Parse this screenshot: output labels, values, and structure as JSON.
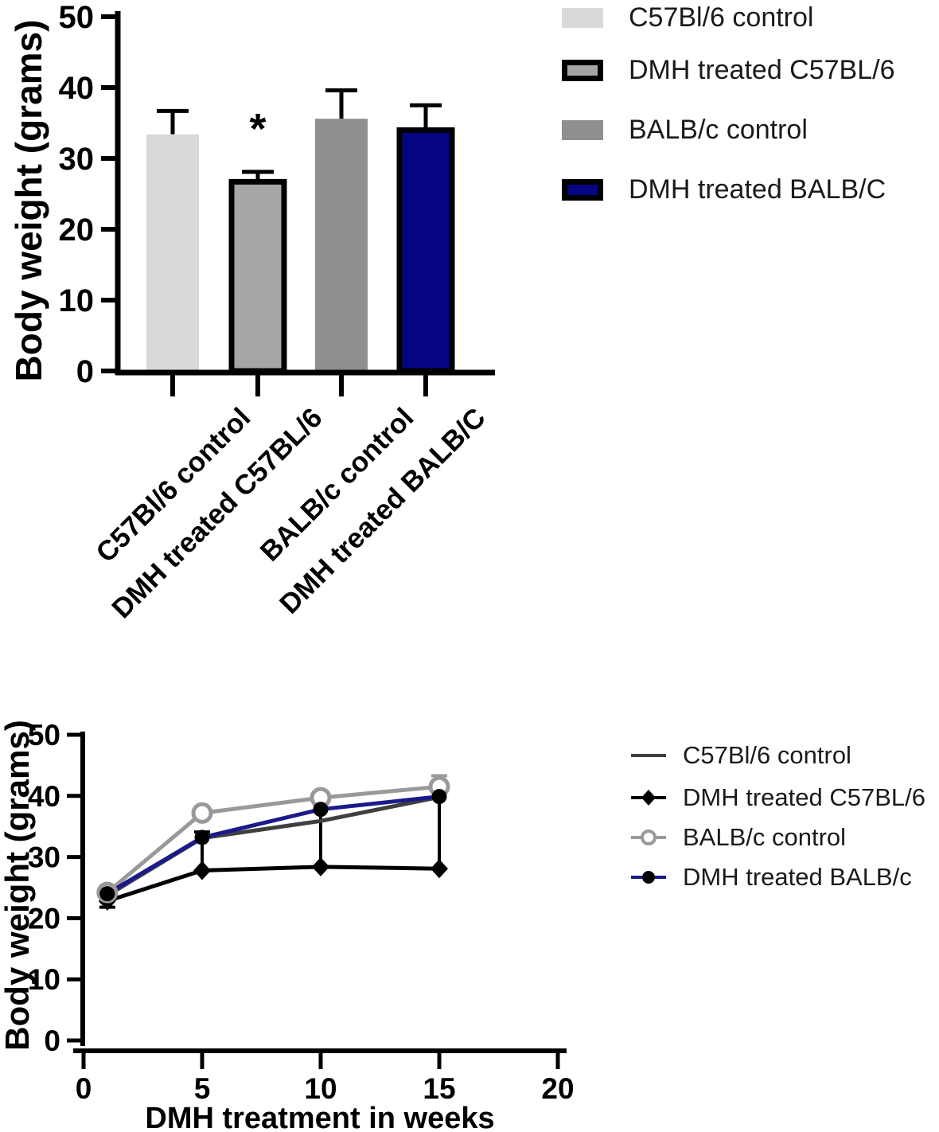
{
  "figure": {
    "description": "Two-panel GraphPad-style figure of mouse body weight",
    "significance_marker": "*"
  },
  "chart_data": [
    {
      "type": "bar",
      "title": "",
      "xlabel": "",
      "ylabel": "Body weight (grams)",
      "ylim": [
        0,
        50
      ],
      "yticks": [
        0,
        10,
        20,
        30,
        40,
        50
      ],
      "grid": false,
      "categories": [
        "C57Bl/6 control",
        "DMH treated C57BL/6",
        "BALB/c control",
        "DMH treated BALB/C"
      ],
      "values": [
        33.4,
        26.7,
        35.6,
        34.0
      ],
      "error_up": [
        3.3,
        1.4,
        4.0,
        3.5
      ],
      "bar_colors": [
        "#d9d9d9",
        "#a6a6a6",
        "#8f8f8f",
        "#050583"
      ],
      "bar_borders": [
        null,
        "#000000",
        null,
        "#000000"
      ],
      "significance": {
        "bar_index": 1,
        "label": "*"
      },
      "legend_position": "top-right",
      "legend": [
        {
          "label": "C57Bl/6 control",
          "fill": "#d9d9d9",
          "border": null
        },
        {
          "label": "DMH treated C57BL/6",
          "fill": "#a6a6a6",
          "border": "#000000"
        },
        {
          "label": "BALB/c control",
          "fill": "#8f8f8f",
          "border": null
        },
        {
          "label": "DMH treated BALB/C",
          "fill": "#050583",
          "border": "#000000"
        }
      ]
    },
    {
      "type": "line",
      "title": "",
      "xlabel": "DMH treatment in weeks",
      "ylabel": "Body weight (grams)",
      "xlim": [
        0,
        20
      ],
      "ylim": [
        0,
        50
      ],
      "xticks": [
        0,
        5,
        10,
        15,
        20
      ],
      "yticks": [
        0,
        10,
        20,
        30,
        40,
        50
      ],
      "grid": false,
      "x": [
        1,
        5,
        10,
        15
      ],
      "series": [
        {
          "name": "C57Bl/6 control",
          "values": [
            23.7,
            33.1,
            35.9,
            39.8
          ],
          "color": "#3f3f3f",
          "marker": "none"
        },
        {
          "name": "DMH treated C57BL/6",
          "values": [
            22.8,
            27.8,
            28.4,
            28.1
          ],
          "color": "#000000",
          "marker": "diamond",
          "error_up": [
            2.4,
            6.3,
            10.3,
            12.7
          ],
          "error_down": [
            1.0,
            0,
            0,
            0
          ]
        },
        {
          "name": "BALB/c control",
          "values": [
            24.2,
            37.2,
            39.7,
            41.5
          ],
          "color": "#999999",
          "marker": "open-circle",
          "error_up": [
            0,
            0,
            0,
            1.8
          ],
          "error_down": [
            0,
            0,
            0,
            0
          ]
        },
        {
          "name": "DMH treated BALB/c",
          "values": [
            24.0,
            33.2,
            37.8,
            39.9
          ],
          "color": "#1a1a8c",
          "marker": "filled-circle",
          "marker_color": "#000000"
        }
      ],
      "legend_position": "right"
    }
  ]
}
